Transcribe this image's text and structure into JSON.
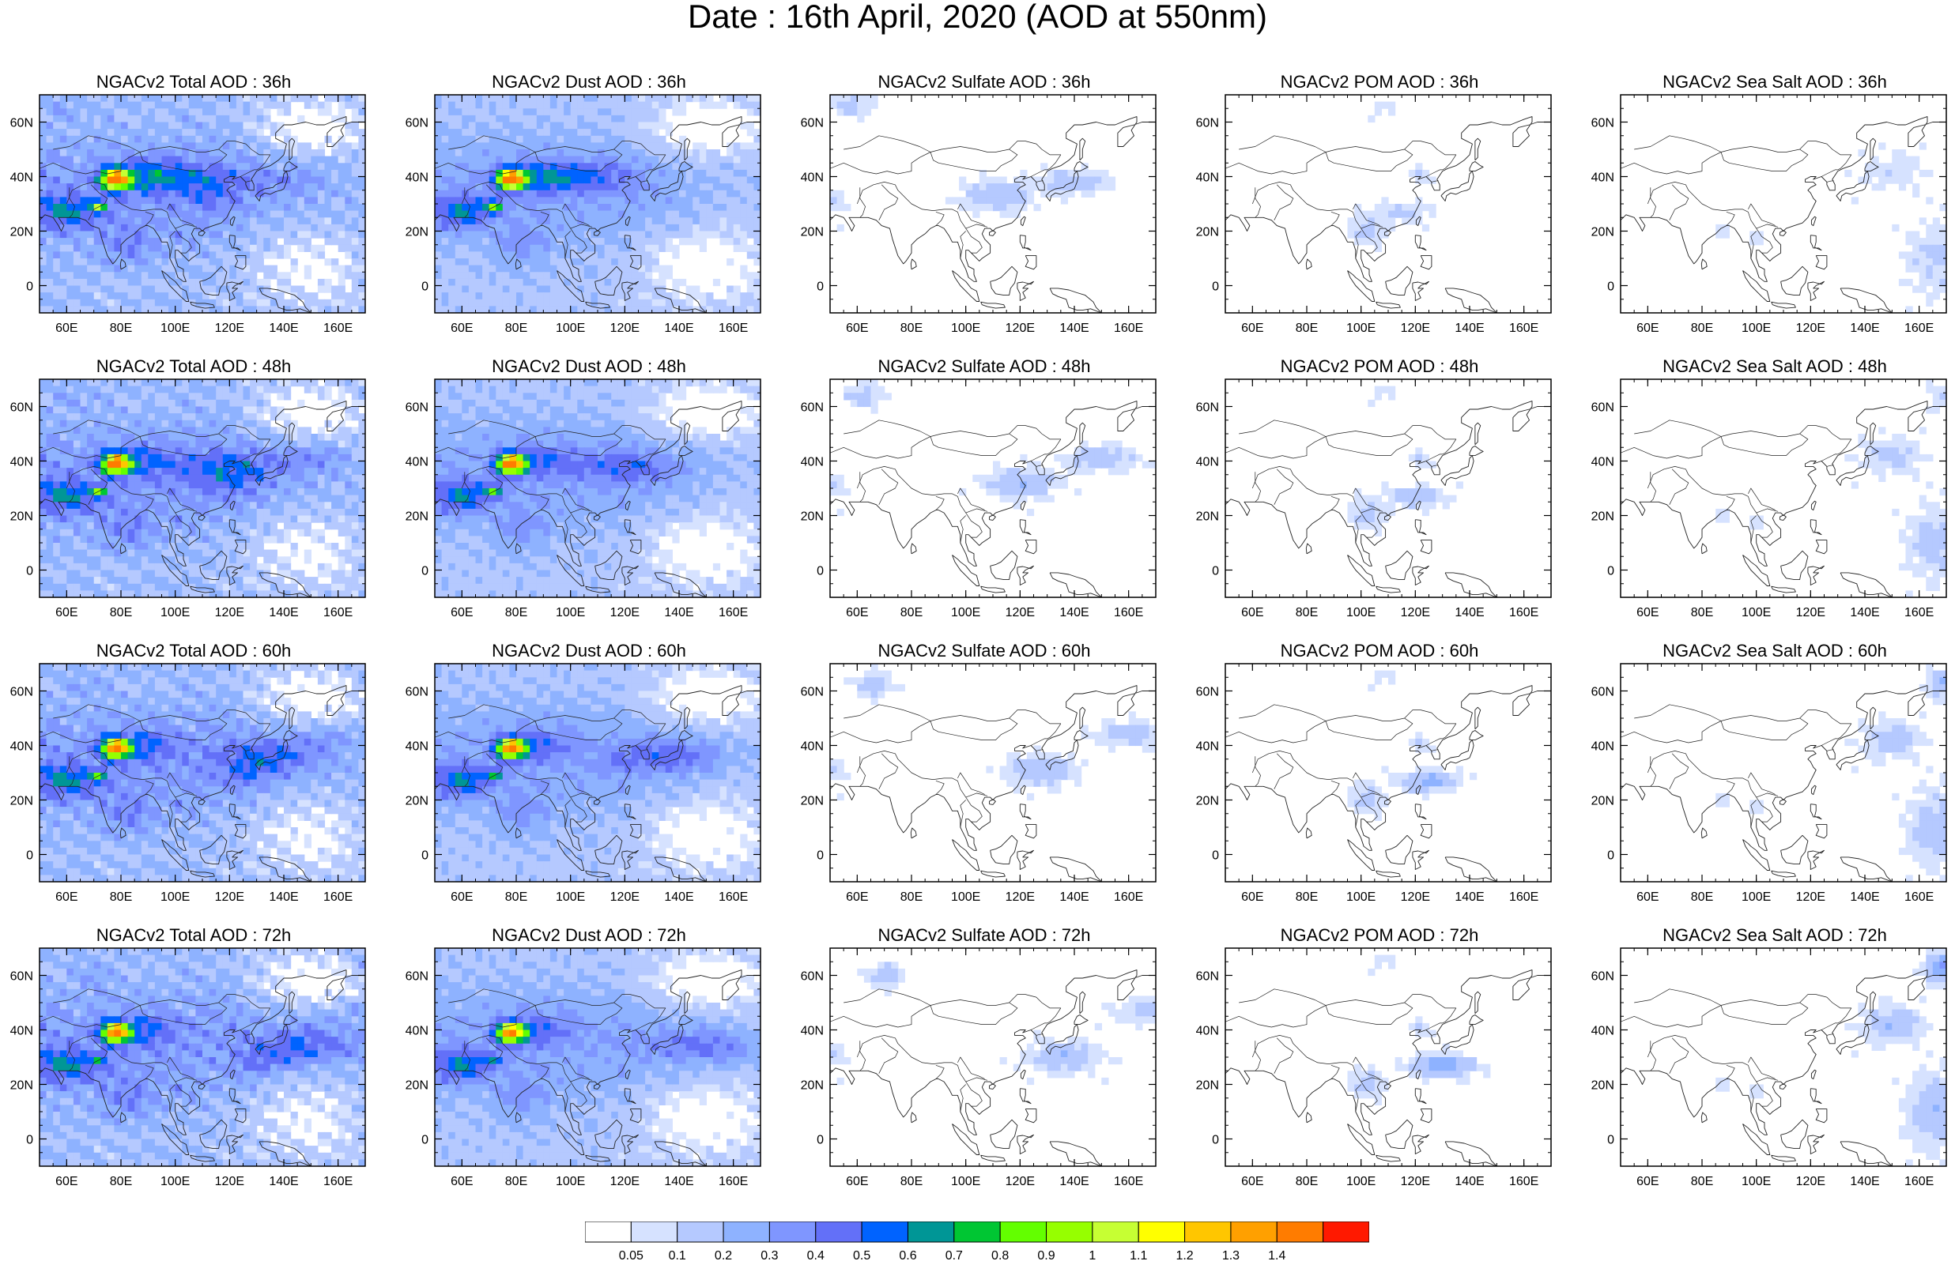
{
  "title": "Date : 16th April, 2020 (AOD at 550nm)",
  "species": [
    "Total",
    "Dust",
    "Sulfate",
    "POM",
    "Sea Salt"
  ],
  "panels": [
    [
      "NGACv2 Total AOD : 36h",
      "NGACv2 Dust AOD : 36h",
      "NGACv2 Sulfate AOD : 36h",
      "NGACv2 POM AOD : 36h",
      "NGACv2 Sea Salt AOD : 36h"
    ],
    [
      "NGACv2 Total AOD : 48h",
      "NGACv2 Dust AOD : 48h",
      "NGACv2 Sulfate AOD : 48h",
      "NGACv2 POM AOD : 48h",
      "NGACv2 Sea Salt AOD : 48h"
    ],
    [
      "NGACv2 Total AOD : 60h",
      "NGACv2 Dust AOD : 60h",
      "NGACv2 Sulfate AOD : 60h",
      "NGACv2 POM AOD : 60h",
      "NGACv2 Sea Salt AOD : 60h"
    ],
    [
      "NGACv2 Total AOD : 72h",
      "NGACv2 Dust AOD : 72h",
      "NGACv2 Sulfate AOD : 72h",
      "NGACv2 POM AOD : 72h",
      "NGACv2 Sea Salt  AOD : 72h"
    ]
  ],
  "map_extent": {
    "lon": [
      50,
      170
    ],
    "lat": [
      -10,
      70
    ]
  },
  "lon_ticks": [
    {
      "value": 60,
      "label": "60E"
    },
    {
      "value": 80,
      "label": "80E"
    },
    {
      "value": 100,
      "label": "100E"
    },
    {
      "value": 120,
      "label": "120E"
    },
    {
      "value": 140,
      "label": "140E"
    },
    {
      "value": 160,
      "label": "160E"
    }
  ],
  "lat_ticks": [
    {
      "value": 60,
      "label": "60N"
    },
    {
      "value": 40,
      "label": "40N"
    },
    {
      "value": 20,
      "label": "20N"
    },
    {
      "value": 0,
      "label": "0"
    }
  ],
  "colorbar": {
    "labels": [
      "0.05",
      "0.1",
      "0.2",
      "0.3",
      "0.4",
      "0.5",
      "0.6",
      "0.7",
      "0.8",
      "0.9",
      "1",
      "1.1",
      "1.2",
      "1.3",
      "1.4"
    ],
    "colors": [
      "#ffffff",
      "#d6e2ff",
      "#b5c9ff",
      "#8eb2ff",
      "#7f96ff",
      "#6370f8",
      "#0063ff",
      "#009696",
      "#00c633",
      "#63ff00",
      "#96ff00",
      "#c6ff33",
      "#ffff00",
      "#ffc600",
      "#ffa000",
      "#ff7c00",
      "#ff1900"
    ]
  }
}
